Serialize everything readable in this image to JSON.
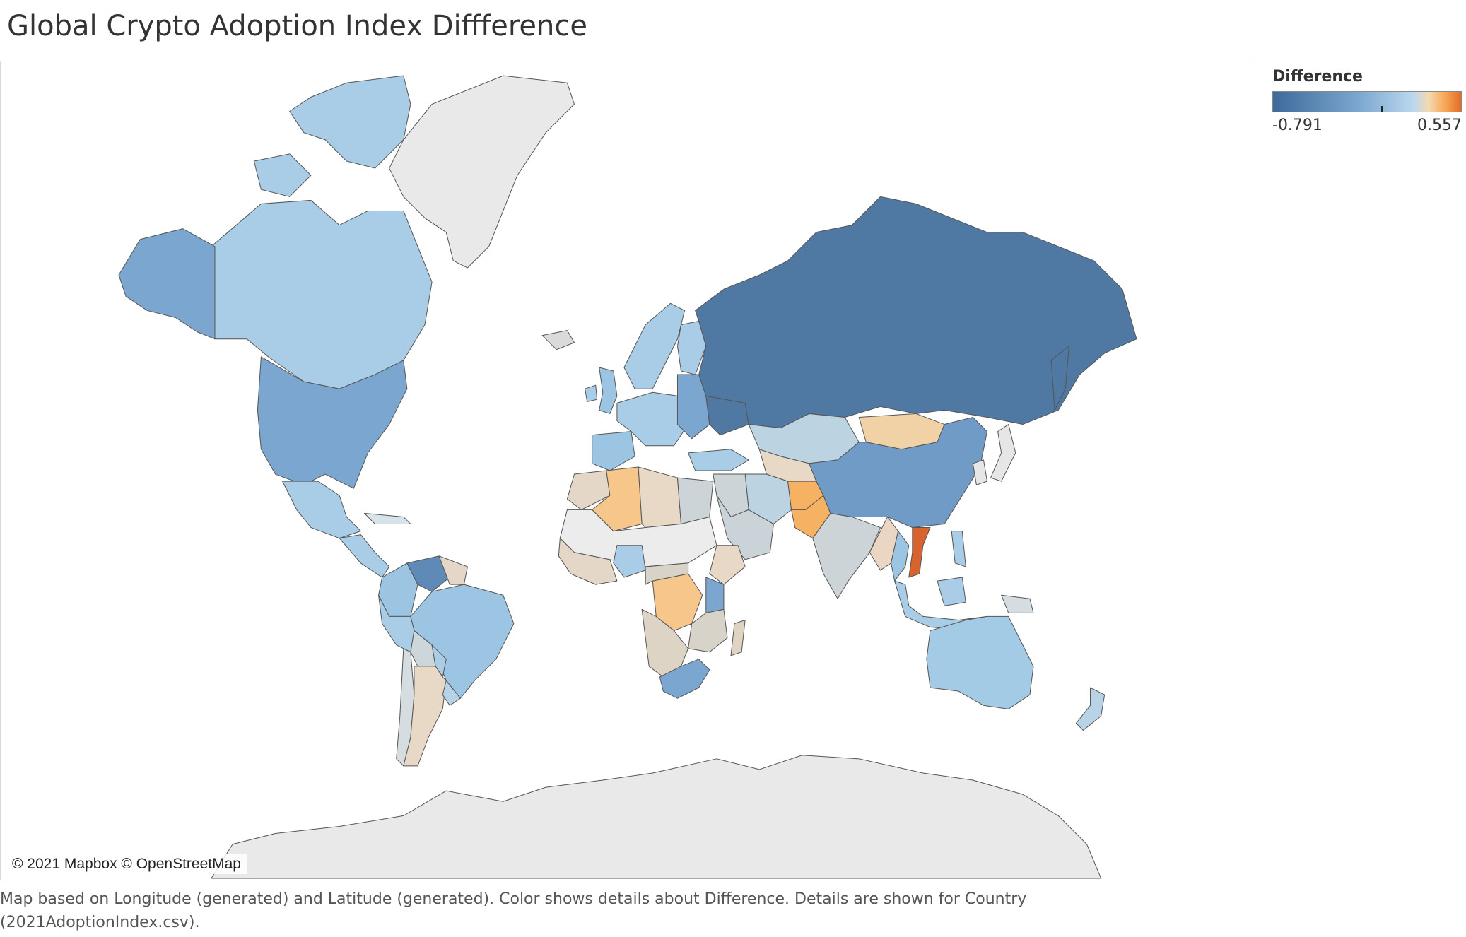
{
  "title": "Global Crypto Adoption Index Diffference",
  "map": {
    "attribution": "© 2021 Mapbox © OpenStreetMap",
    "background_color": "#ffffff",
    "land_nodata_color": "#e9e9e9",
    "border_color": "#555555",
    "regions": [
      {
        "name": "Greenland",
        "color": "#e9e9e9"
      },
      {
        "name": "Antarctica",
        "color": "#e9e9e9"
      },
      {
        "name": "Canada",
        "color": "#a9cde7"
      },
      {
        "name": "Alaska",
        "color": "#7aa6cf"
      },
      {
        "name": "United States",
        "color": "#7aa6cf"
      },
      {
        "name": "Mexico",
        "color": "#a9cde7"
      },
      {
        "name": "Central America",
        "color": "#a9cde7"
      },
      {
        "name": "Cuba",
        "color": "#d6e3ea"
      },
      {
        "name": "Colombia",
        "color": "#9cc4e3"
      },
      {
        "name": "Venezuela",
        "color": "#5f89b6"
      },
      {
        "name": "Guyana Suriname",
        "color": "#e4d7c7"
      },
      {
        "name": "Brazil",
        "color": "#9cc4e3"
      },
      {
        "name": "Peru",
        "color": "#a9cde7"
      },
      {
        "name": "Bolivia",
        "color": "#cdd6da"
      },
      {
        "name": "Paraguay",
        "color": "#a9cde7"
      },
      {
        "name": "Argentina",
        "color": "#e8d9c7"
      },
      {
        "name": "Chile",
        "color": "#d6dde1"
      },
      {
        "name": "Uruguay",
        "color": "#b8d3e6"
      },
      {
        "name": "Iceland",
        "color": "#dadada"
      },
      {
        "name": "United Kingdom",
        "color": "#9cc4e3"
      },
      {
        "name": "Ireland",
        "color": "#a9cde7"
      },
      {
        "name": "Scandinavia",
        "color": "#a9cde7"
      },
      {
        "name": "Finland",
        "color": "#a9cde7"
      },
      {
        "name": "Western Europe",
        "color": "#a9cde7"
      },
      {
        "name": "Iberia",
        "color": "#9cc4e3"
      },
      {
        "name": "Eastern Europe",
        "color": "#7aa6cf"
      },
      {
        "name": "Ukraine",
        "color": "#4f78a3"
      },
      {
        "name": "Russia",
        "color": "#4f78a3"
      },
      {
        "name": "Turkey",
        "color": "#a9cde7"
      },
      {
        "name": "Kazakhstan",
        "color": "#bcd3e2"
      },
      {
        "name": "Central Asia",
        "color": "#e8d9c7"
      },
      {
        "name": "Afghanistan",
        "color": "#f5b263"
      },
      {
        "name": "Pakistan",
        "color": "#f5b263"
      },
      {
        "name": "Iran",
        "color": "#bcd3e2"
      },
      {
        "name": "Middle East",
        "color": "#ccd4d8"
      },
      {
        "name": "Saudi Arabia",
        "color": "#c9d3d8"
      },
      {
        "name": "India",
        "color": "#ccd4d8"
      },
      {
        "name": "Mongolia",
        "color": "#f1d2a6"
      },
      {
        "name": "China",
        "color": "#6f9bc6"
      },
      {
        "name": "Korea Japan",
        "color": "#e6e6e6"
      },
      {
        "name": "Myanmar",
        "color": "#ead6c3"
      },
      {
        "name": "Thailand",
        "color": "#9cc4e3"
      },
      {
        "name": "Vietnam",
        "color": "#d7642f"
      },
      {
        "name": "Malaysia Indonesia",
        "color": "#a9cde7"
      },
      {
        "name": "Philippines",
        "color": "#a9cde7"
      },
      {
        "name": "Papua New Guinea",
        "color": "#d6dde1"
      },
      {
        "name": "Australia",
        "color": "#a3cbe6"
      },
      {
        "name": "New Zealand",
        "color": "#b8d3e6"
      },
      {
        "name": "Algeria",
        "color": "#f6c68a"
      },
      {
        "name": "Morocco",
        "color": "#e4d7c7"
      },
      {
        "name": "Libya",
        "color": "#e8d9c7"
      },
      {
        "name": "Egypt",
        "color": "#ccd4d8"
      },
      {
        "name": "Sahel",
        "color": "#ececec"
      },
      {
        "name": "West Africa",
        "color": "#e4d7c7"
      },
      {
        "name": "Nigeria",
        "color": "#a9cde7"
      },
      {
        "name": "Ethiopia Somalia",
        "color": "#e8d9c7"
      },
      {
        "name": "Kenya",
        "color": "#7aa6cf"
      },
      {
        "name": "DR Congo",
        "color": "#f6c68a"
      },
      {
        "name": "Central Africa",
        "color": "#d8d3c9"
      },
      {
        "name": "Tanzania Zambia",
        "color": "#d8d3c9"
      },
      {
        "name": "Angola Namibia",
        "color": "#ddd4c6"
      },
      {
        "name": "South Africa",
        "color": "#7aa6cf"
      },
      {
        "name": "Madagascar",
        "color": "#e0d3c1"
      }
    ]
  },
  "legend": {
    "title": "Difference",
    "min_label": "-0.791",
    "max_label": "0.557",
    "min": -0.791,
    "max": 0.557,
    "color_low": "#3d6a9a",
    "color_mid": "#bcd8ee",
    "color_high": "#e36b2a"
  },
  "caption": "Map based on Longitude (generated) and Latitude (generated).  Color shows details about Difference.  Details are shown for Country (2021AdoptionIndex.csv)."
}
